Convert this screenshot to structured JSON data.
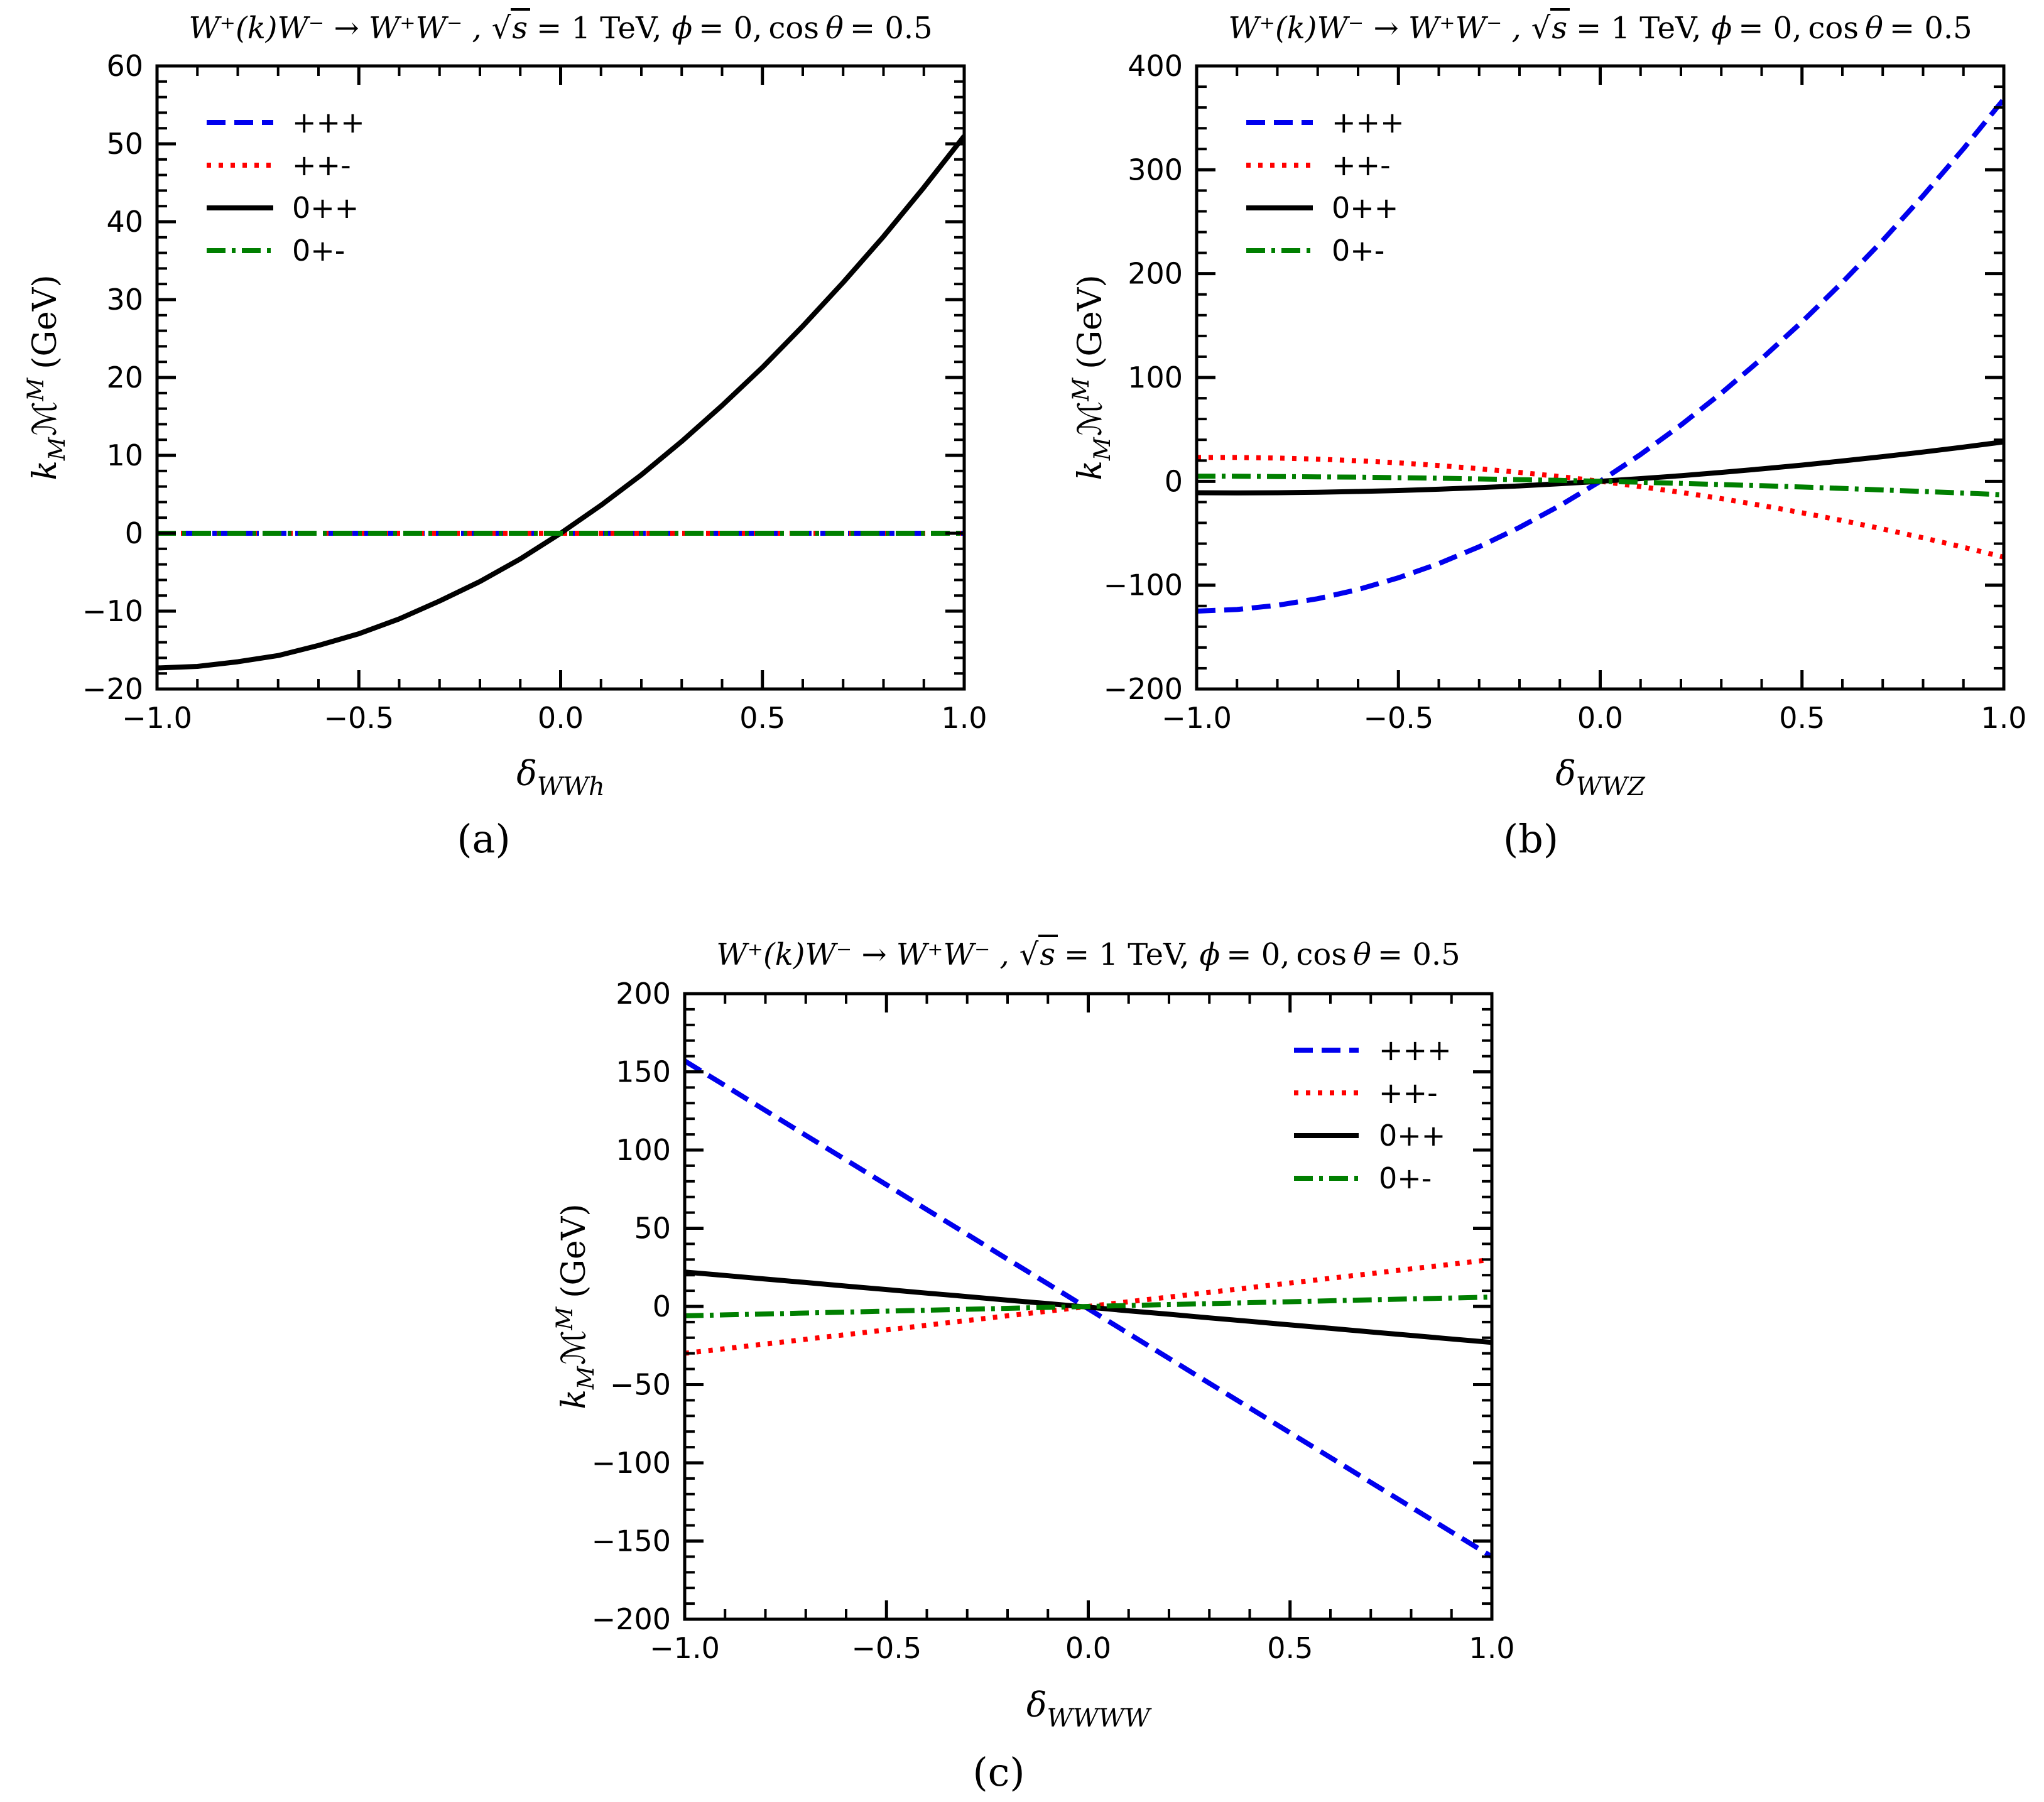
{
  "figure": {
    "background": "#ffffff",
    "series_colors": {
      "+++": "#0000ee",
      "++-": "#ff0000",
      "0++": "#000000",
      "0+-": "#007f00"
    }
  },
  "shared": {
    "title": {
      "process": "W⁺(k)W⁻ → W⁺W⁻ ,",
      "radical": "√",
      "sqrt_arg": "s",
      "energy": "= 1 TeV,",
      "phi": "ϕ",
      "phi_eq": "= 0,",
      "cos_word": "cos",
      "theta": "θ",
      "theta_eq": "= 0.5"
    },
    "ylabel": {
      "k": "k",
      "k_sub": "M",
      "amp": "ℳ",
      "amp_sup": "M",
      "unit": "(GeV)"
    }
  },
  "chart_data": [
    {
      "id": "a",
      "caption": "(a)",
      "type": "line",
      "title_text": "W⁺(k)W⁻ → W⁺W⁻ , √s = 1 TeV, ϕ = 0, cos θ = 0.5",
      "xlabel": {
        "symbol": "δ",
        "sub": "WWh"
      },
      "xlabel_text": "δ_WWh",
      "ylabel_text": "k_M ℳ^M (GeV)",
      "xlim": [
        -1.0,
        1.0
      ],
      "ylim": [
        -20,
        60
      ],
      "x_major_step": 0.5,
      "x_minor_step": 0.1,
      "y_major_step": 10,
      "y_minor_step": 2,
      "x_tick_labels": [
        "−1.0",
        "−0.5",
        "0.0",
        "0.5",
        "1.0"
      ],
      "y_tick_labels": [
        "−20",
        "−10",
        "0",
        "10",
        "20",
        "30",
        "40",
        "50",
        "60"
      ],
      "legend_position": "upper left",
      "grid": false,
      "x": [
        -1.0,
        -0.9,
        -0.8,
        -0.7,
        -0.6,
        -0.5,
        -0.4,
        -0.3,
        -0.2,
        -0.1,
        0.0,
        0.1,
        0.2,
        0.3,
        0.4,
        0.5,
        0.6,
        0.7,
        0.8,
        0.9,
        1.0
      ],
      "series": [
        {
          "label": "+++",
          "color": "#0000ee",
          "style": "dashed",
          "values": [
            0,
            0,
            0,
            0,
            0,
            0,
            0,
            0,
            0,
            0,
            0,
            0,
            0,
            0,
            0,
            0,
            0,
            0,
            0,
            0,
            0
          ]
        },
        {
          "label": "++-",
          "color": "#ff0000",
          "style": "dotted",
          "values": [
            0,
            0,
            0,
            0,
            0,
            0,
            0,
            0,
            0,
            0,
            0,
            0,
            0,
            0,
            0,
            0,
            0,
            0,
            0,
            0,
            0
          ]
        },
        {
          "label": "0++",
          "color": "#000000",
          "style": "solid",
          "values": [
            -17.3,
            -17.1,
            -16.5,
            -15.7,
            -14.4,
            -12.9,
            -11.0,
            -8.7,
            -6.2,
            -3.3,
            0.0,
            3.6,
            7.5,
            11.8,
            16.4,
            21.3,
            26.6,
            32.2,
            38.1,
            44.4,
            51.0
          ]
        },
        {
          "label": "0+-",
          "color": "#007f00",
          "style": "dashdot",
          "values": [
            0,
            0,
            0,
            0,
            0,
            0,
            0,
            0,
            0,
            0,
            0,
            0,
            0,
            0,
            0,
            0,
            0,
            0,
            0,
            0,
            0
          ]
        }
      ]
    },
    {
      "id": "b",
      "caption": "(b)",
      "type": "line",
      "title_text": "W⁺(k)W⁻ → W⁺W⁻ , √s = 1 TeV, ϕ = 0, cos θ = 0.5",
      "xlabel": {
        "symbol": "δ",
        "sub": "WWZ"
      },
      "xlabel_text": "δ_WWZ",
      "ylabel_text": "k_M ℳ^M (GeV)",
      "xlim": [
        -1.0,
        1.0
      ],
      "ylim": [
        -200,
        400
      ],
      "x_major_step": 0.5,
      "x_minor_step": 0.1,
      "y_major_step": 100,
      "y_minor_step": 20,
      "x_tick_labels": [
        "−1.0",
        "−0.5",
        "0.0",
        "0.5",
        "1.0"
      ],
      "y_tick_labels": [
        "−200",
        "−100",
        "0",
        "100",
        "200",
        "300",
        "400"
      ],
      "legend_position": "upper left",
      "grid": false,
      "x": [
        -1.0,
        -0.9,
        -0.8,
        -0.7,
        -0.6,
        -0.5,
        -0.4,
        -0.3,
        -0.2,
        -0.1,
        0.0,
        0.1,
        0.2,
        0.3,
        0.4,
        0.5,
        0.6,
        0.7,
        0.8,
        0.9,
        1.0
      ],
      "series": [
        {
          "label": "+++",
          "color": "#0000ee",
          "style": "dashed",
          "values": [
            -125.0,
            -123.4,
            -119.4,
            -113.0,
            -104.2,
            -92.9,
            -79.2,
            -63.0,
            -44.4,
            -23.4,
            0.0,
            25.9,
            54.2,
            84.9,
            118.0,
            153.6,
            191.6,
            232.0,
            275.0,
            320.3,
            368.0
          ]
        },
        {
          "label": "++-",
          "color": "#ff0000",
          "style": "dotted",
          "values": [
            23.0,
            23.0,
            22.4,
            21.4,
            19.8,
            17.8,
            15.2,
            12.2,
            8.6,
            4.6,
            0.0,
            -5.1,
            -10.6,
            -16.7,
            -23.2,
            -30.3,
            -37.8,
            -45.9,
            -54.4,
            -63.5,
            -73.0
          ]
        },
        {
          "label": "0++",
          "color": "#000000",
          "style": "solid",
          "values": [
            -11.0,
            -11.1,
            -11.0,
            -10.5,
            -9.8,
            -8.9,
            -7.6,
            -6.1,
            -4.4,
            -2.3,
            0.0,
            2.6,
            5.4,
            8.6,
            12.0,
            15.6,
            19.6,
            23.8,
            28.2,
            33.0,
            38.0
          ]
        },
        {
          "label": "0+-",
          "color": "#007f00",
          "style": "dashdot",
          "values": [
            5.0,
            4.9,
            4.6,
            4.3,
            4.0,
            3.5,
            3.0,
            2.3,
            1.6,
            0.9,
            0.0,
            -0.9,
            -2.0,
            -3.1,
            -4.2,
            -5.5,
            -6.8,
            -8.3,
            -9.8,
            -11.3,
            -13.0
          ]
        }
      ]
    },
    {
      "id": "c",
      "caption": "(c)",
      "type": "line",
      "title_text": "W⁺(k)W⁻ → W⁺W⁻ , √s = 1 TeV, ϕ = 0, cos θ = 0.5",
      "xlabel": {
        "symbol": "δ",
        "sub": "WWWW"
      },
      "xlabel_text": "δ_WWWW",
      "ylabel_text": "k_M ℳ^M (GeV)",
      "xlim": [
        -1.0,
        1.0
      ],
      "ylim": [
        -200,
        200
      ],
      "x_major_step": 0.5,
      "x_minor_step": 0.1,
      "y_major_step": 50,
      "y_minor_step": 10,
      "x_tick_labels": [
        "−1.0",
        "−0.5",
        "0.0",
        "0.5",
        "1.0"
      ],
      "y_tick_labels": [
        "−200",
        "−150",
        "−100",
        "−50",
        "0",
        "50",
        "100",
        "150",
        "200"
      ],
      "legend_position": "upper right",
      "grid": false,
      "x": [
        -1.0,
        -0.9,
        -0.8,
        -0.7,
        -0.6,
        -0.5,
        -0.4,
        -0.3,
        -0.2,
        -0.1,
        0.0,
        0.1,
        0.2,
        0.3,
        0.4,
        0.5,
        0.6,
        0.7,
        0.8,
        0.9,
        1.0
      ],
      "series": [
        {
          "label": "+++",
          "color": "#0000ee",
          "style": "dashed",
          "values": [
            157.0,
            141.2,
            125.3,
            109.4,
            93.6,
            77.8,
            61.9,
            46.1,
            30.2,
            14.4,
            -1.5,
            -17.4,
            -33.2,
            -49.1,
            -64.9,
            -80.8,
            -96.6,
            -112.5,
            -128.3,
            -144.2,
            -160.0
          ]
        },
        {
          "label": "++-",
          "color": "#ff0000",
          "style": "dotted",
          "values": [
            -30,
            -27,
            -24,
            -21,
            -18,
            -15,
            -12,
            -9,
            -6,
            -3,
            0,
            3,
            6,
            9,
            12,
            15,
            18,
            21,
            24,
            27,
            30
          ]
        },
        {
          "label": "0++",
          "color": "#000000",
          "style": "solid",
          "values": [
            22.0,
            19.8,
            17.5,
            15.3,
            13.0,
            10.8,
            8.5,
            6.3,
            4.0,
            1.8,
            -0.5,
            -2.8,
            -5.0,
            -7.3,
            -9.5,
            -11.8,
            -14.0,
            -16.3,
            -18.5,
            -20.8,
            -23.0
          ]
        },
        {
          "label": "0+-",
          "color": "#007f00",
          "style": "dashdot",
          "values": [
            -6.0,
            -5.4,
            -4.8,
            -4.2,
            -3.6,
            -3.0,
            -2.4,
            -1.8,
            -1.2,
            -0.6,
            0.0,
            0.6,
            1.2,
            1.8,
            2.4,
            3.0,
            3.6,
            4.2,
            4.8,
            5.4,
            6.0
          ]
        }
      ]
    }
  ]
}
